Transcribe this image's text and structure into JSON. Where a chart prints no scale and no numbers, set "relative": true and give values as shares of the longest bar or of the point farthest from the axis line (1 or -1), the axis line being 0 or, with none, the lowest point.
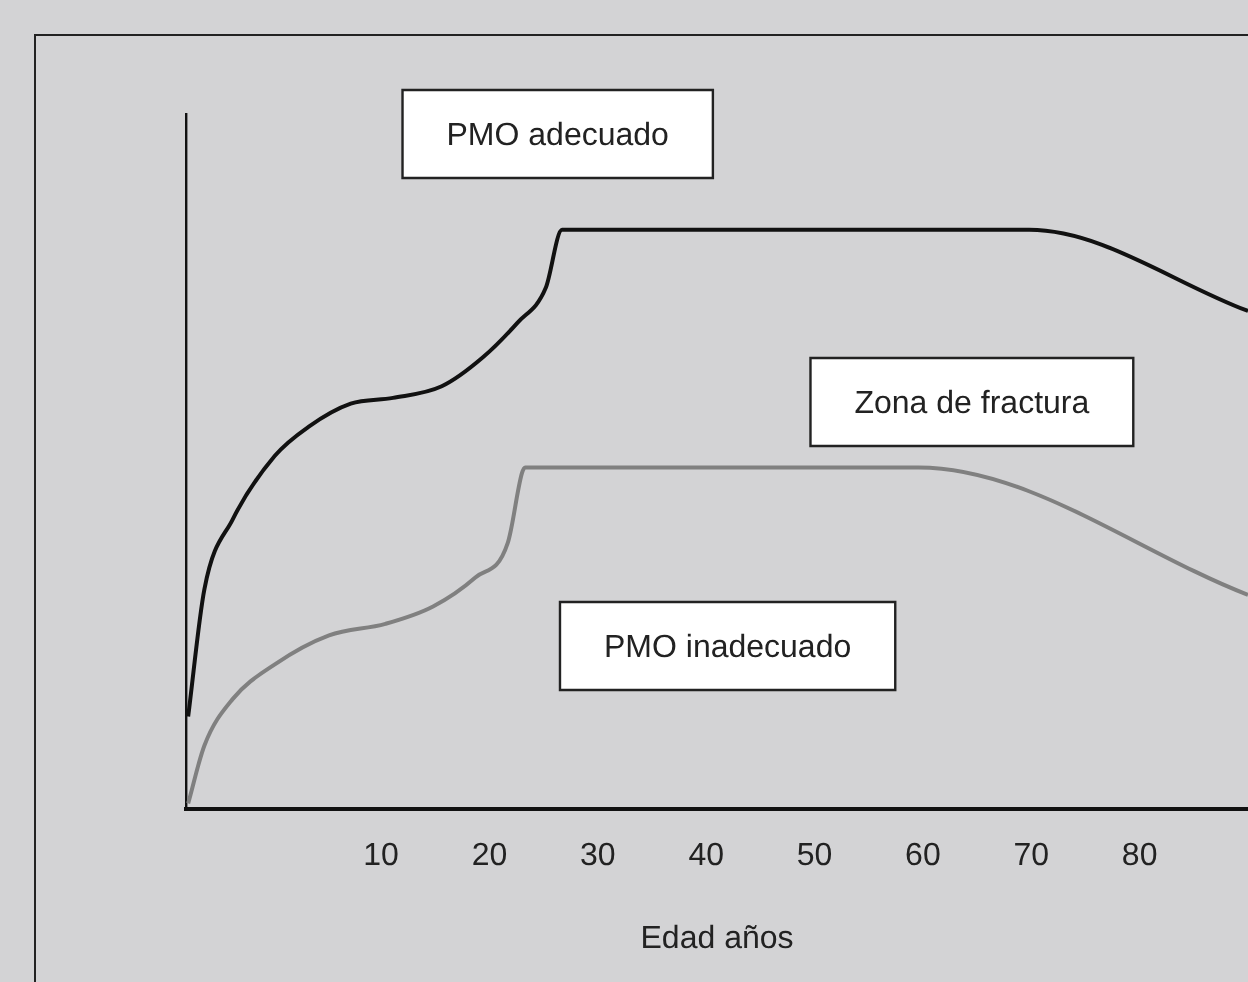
{
  "chart_data": {
    "type": "line",
    "relative": true,
    "xlabel": "Edad años",
    "xlim": [
      -8,
      90
    ],
    "xticks": [
      10,
      20,
      30,
      40,
      50,
      60,
      70,
      80
    ],
    "tick_labels": "x",
    "grid": false,
    "legend": false,
    "marker": "none",
    "line_style": "solid",
    "annotations": [
      "PMO adecuado",
      "Zona de fractura",
      "PMO inadecuado"
    ],
    "series": [
      {
        "color": "#111111",
        "x": [
          -7.8,
          -6.3,
          -3.7,
          0.2,
          3.3,
          7.2,
          11.1,
          15.6,
          19.4,
          22.6,
          25.2,
          26.7,
          69.8,
          90
        ],
        "values": [
          0.16,
          0.38,
          0.5,
          0.61,
          0.66,
          0.7,
          0.71,
          0.73,
          0.78,
          0.84,
          0.9,
          1,
          1,
          0.86
        ]
      },
      {
        "color": "#808080",
        "x": [
          -7.8,
          -6.3,
          -3.7,
          0.2,
          5.2,
          10.4,
          14.8,
          18.7,
          21.7,
          23,
          23.3,
          59.6,
          90
        ],
        "values": [
          0.01,
          0.11,
          0.19,
          0.25,
          0.3,
          0.32,
          0.35,
          0.4,
          0.46,
          0.58,
          0.59,
          0.59,
          0.37
        ]
      }
    ]
  }
}
